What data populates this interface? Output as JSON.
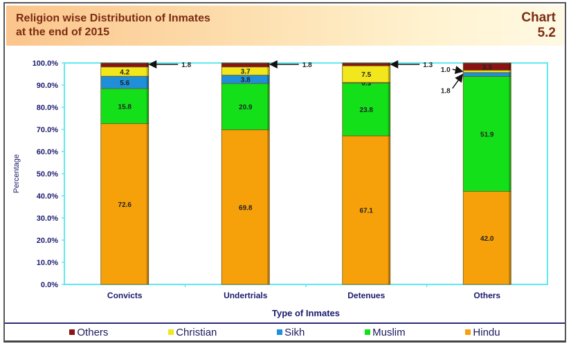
{
  "header": {
    "title_line1": "Religion wise Distribution of Inmates",
    "title_line2": "at the end of 2015",
    "chart_label": "Chart",
    "chart_number": "5.2"
  },
  "chart_data": {
    "type": "bar",
    "stacked": true,
    "title": "Religion wise Distribution of Inmates at the end of 2015",
    "xlabel": "Type of Inmates",
    "ylabel": "Percentage",
    "ylim": [
      0,
      100
    ],
    "yticks": [
      "0.0%",
      "10.0%",
      "20.0%",
      "30.0%",
      "40.0%",
      "50.0%",
      "60.0%",
      "70.0%",
      "80.0%",
      "90.0%",
      "100.0%"
    ],
    "categories": [
      "Convicts",
      "Undertrials",
      "Detenues",
      "Others"
    ],
    "series": [
      {
        "name": "Hindu",
        "color": "#f7a10a",
        "values": [
          72.6,
          69.8,
          67.1,
          42.0
        ]
      },
      {
        "name": "Muslim",
        "color": "#14e01a",
        "values": [
          15.8,
          20.9,
          23.8,
          51.9
        ]
      },
      {
        "name": "Sikh",
        "color": "#1e8fd8",
        "values": [
          5.6,
          3.8,
          0.3,
          1.8
        ]
      },
      {
        "name": "Christian",
        "color": "#f2e61c",
        "values": [
          4.2,
          3.7,
          7.5,
          1.0
        ]
      },
      {
        "name": "Others",
        "color": "#8a1414",
        "values": [
          1.8,
          1.8,
          1.3,
          3.3
        ]
      }
    ],
    "legend_order": [
      "Others",
      "Christian",
      "Sikh",
      "Muslim",
      "Hindu"
    ],
    "legend_position": "bottom",
    "grid": false,
    "axis_color": "#5fe8f0",
    "text_color": "#1a1a6e"
  }
}
